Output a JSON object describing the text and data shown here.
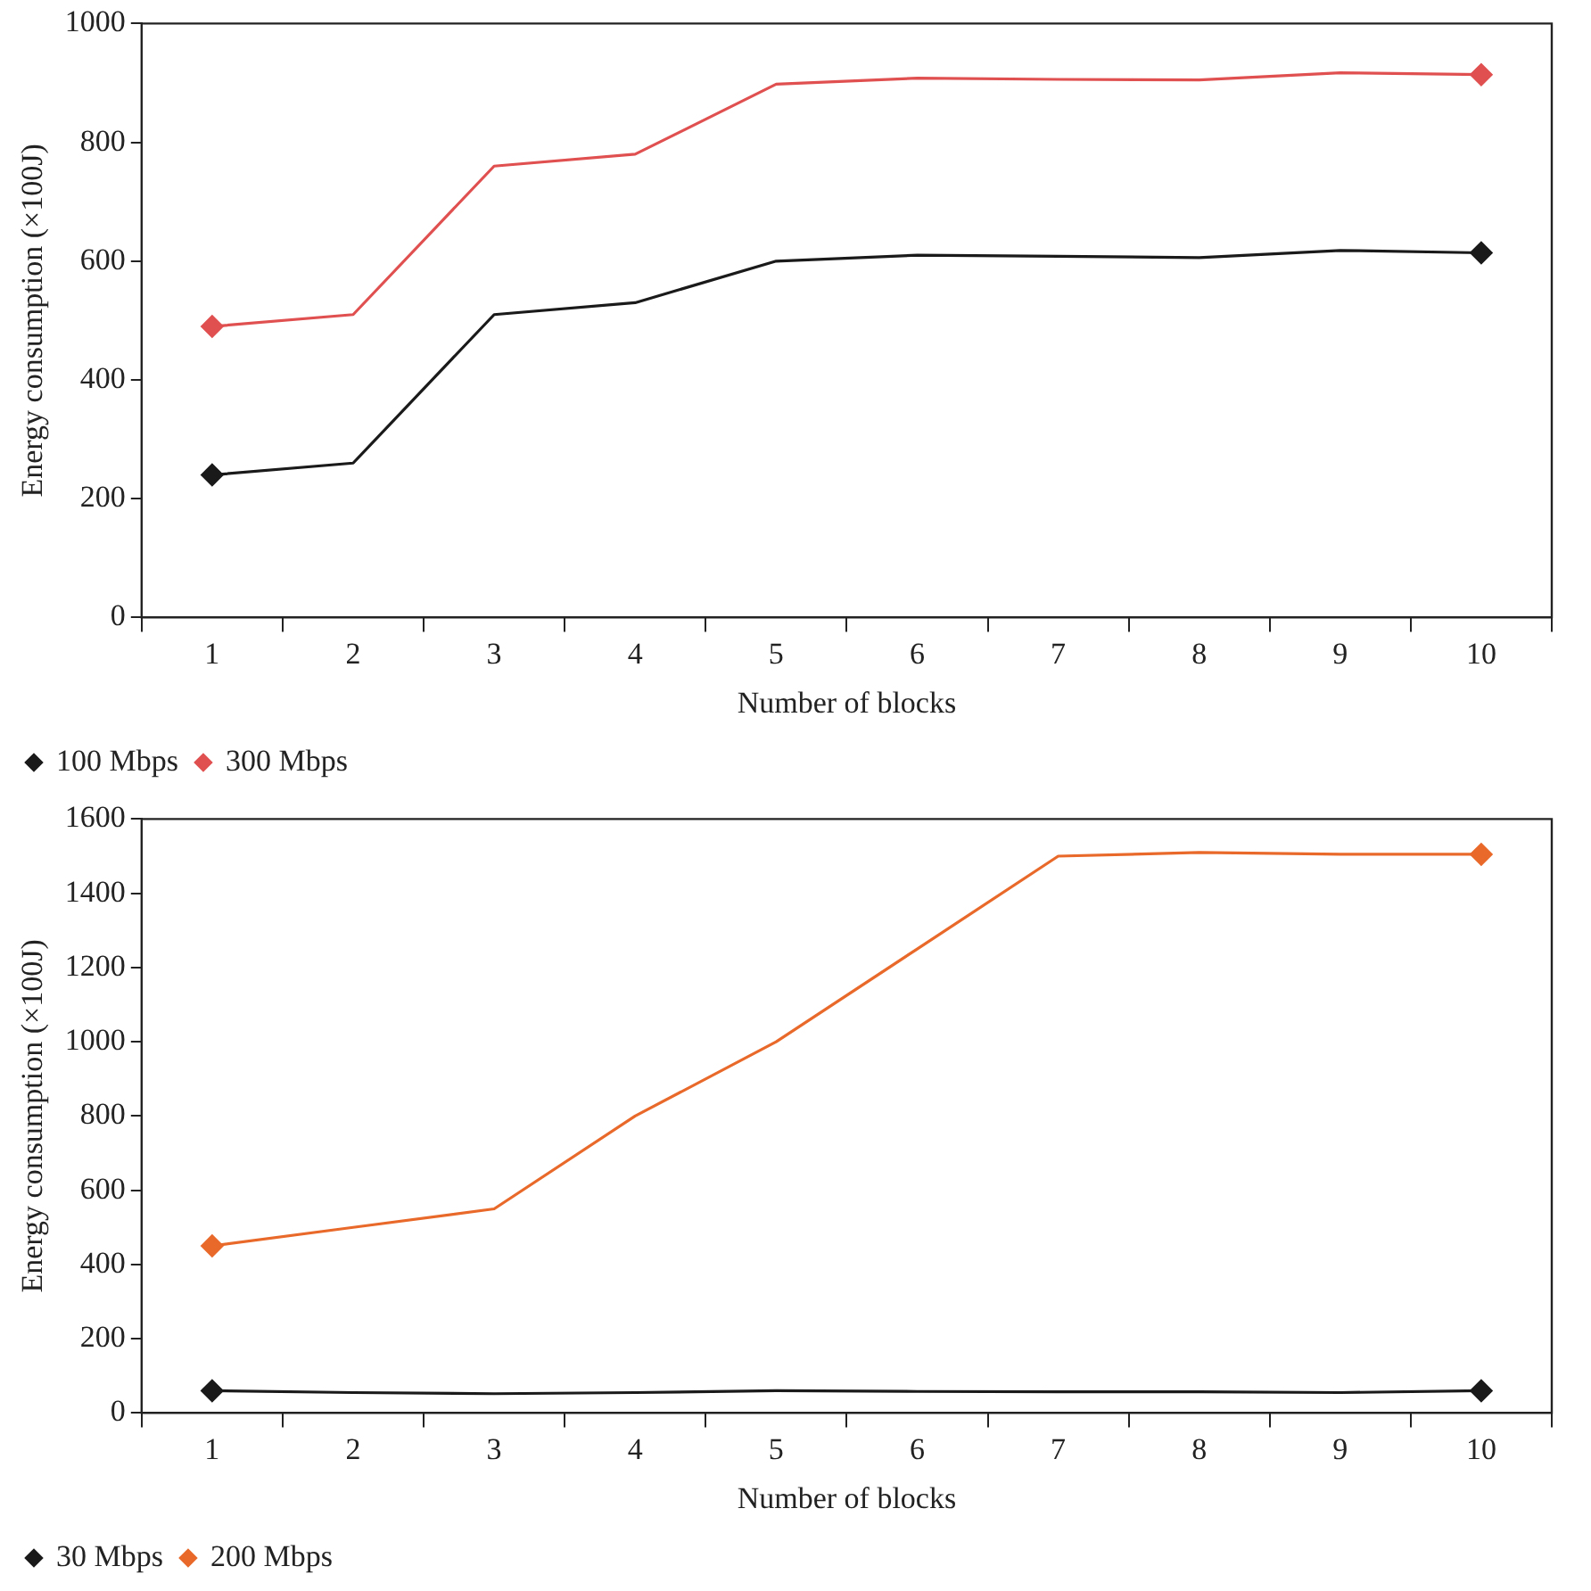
{
  "chart_data": [
    {
      "type": "line",
      "xlabel": "Number of blocks",
      "ylabel": "Energy consumption (×100J)",
      "categories": [
        "1",
        "2",
        "3",
        "4",
        "5",
        "6",
        "7",
        "8",
        "9",
        "10"
      ],
      "series": [
        {
          "name": "100 Mbps",
          "color": "#1a1a1a",
          "values": [
            240,
            260,
            510,
            530,
            600,
            610,
            608,
            606,
            618,
            614
          ]
        },
        {
          "name": "300 Mbps",
          "color": "#e05050",
          "values": [
            490,
            510,
            760,
            780,
            898,
            908,
            906,
            905,
            917,
            914
          ]
        }
      ],
      "ylim": [
        0,
        1000
      ],
      "yticks": [
        0,
        200,
        400,
        600,
        800,
        1000
      ],
      "grid": false,
      "legend": "bottom",
      "line_style": "solid"
    },
    {
      "type": "line",
      "xlabel": "Number of blocks",
      "ylabel": "Energy consumption (×100J)",
      "categories": [
        "1",
        "2",
        "3",
        "4",
        "5",
        "6",
        "7",
        "8",
        "9",
        "10"
      ],
      "series": [
        {
          "name": "30 Mbps",
          "color": "#1a1a1a",
          "values": [
            60,
            55,
            52,
            55,
            60,
            58,
            57,
            57,
            55,
            60
          ]
        },
        {
          "name": "200 Mbps",
          "color": "#e8692a",
          "values": [
            450,
            500,
            550,
            800,
            1000,
            1250,
            1500,
            1510,
            1505,
            1505
          ]
        }
      ],
      "ylim": [
        0,
        1600
      ],
      "yticks": [
        0,
        200,
        400,
        600,
        800,
        1000,
        1200,
        1400,
        1600
      ],
      "grid": false,
      "legend": "bottom",
      "line_style": "solid"
    }
  ]
}
